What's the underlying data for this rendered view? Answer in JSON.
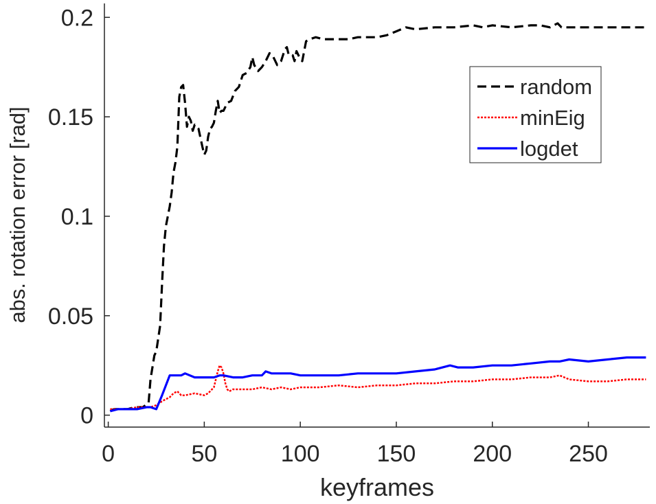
{
  "chart_data": {
    "type": "line",
    "title": "",
    "xlabel": "keyframes",
    "ylabel": "abs. rotation error [rad]",
    "xlim": [
      -2,
      282
    ],
    "ylim": [
      -0.006,
      0.207
    ],
    "xticks": [
      0,
      50,
      100,
      150,
      200,
      250
    ],
    "yticks": [
      0,
      0.05,
      0.1,
      0.15,
      0.2
    ],
    "xtick_labels": [
      "0",
      "50",
      "100",
      "150",
      "200",
      "250"
    ],
    "ytick_labels": [
      "0",
      "0.05",
      "0.1",
      "0.15",
      "0.2"
    ],
    "grid": false,
    "legend": {
      "position": "top-right"
    },
    "series": [
      {
        "name": "random",
        "color": "#000000",
        "style": "dashed",
        "x": [
          1,
          3,
          6,
          10,
          14,
          18,
          21,
          22,
          24,
          25,
          27,
          28,
          29,
          30,
          32,
          33,
          34,
          35,
          36,
          37,
          38,
          39,
          40,
          41,
          42,
          43,
          44,
          45,
          47,
          49,
          50,
          51,
          52,
          53,
          54,
          55,
          56,
          57,
          58,
          59,
          60,
          62,
          64,
          66,
          68,
          70,
          72,
          74,
          75,
          76,
          78,
          80,
          82,
          84,
          86,
          88,
          90,
          92,
          93,
          94,
          96,
          97,
          98,
          100,
          101,
          103,
          105,
          108,
          112,
          118,
          125,
          130,
          140,
          145,
          150,
          155,
          160,
          170,
          180,
          190,
          195,
          200,
          210,
          220,
          225,
          230,
          234,
          236,
          240,
          250,
          260,
          270,
          280
        ],
        "y": [
          0.002,
          0.003,
          0.003,
          0.003,
          0.004,
          0.004,
          0.006,
          0.018,
          0.03,
          0.032,
          0.045,
          0.066,
          0.085,
          0.095,
          0.105,
          0.112,
          0.122,
          0.127,
          0.135,
          0.16,
          0.165,
          0.166,
          0.157,
          0.145,
          0.15,
          0.148,
          0.143,
          0.146,
          0.144,
          0.135,
          0.131,
          0.133,
          0.14,
          0.144,
          0.145,
          0.147,
          0.153,
          0.158,
          0.152,
          0.153,
          0.153,
          0.157,
          0.158,
          0.163,
          0.165,
          0.171,
          0.172,
          0.175,
          0.18,
          0.176,
          0.173,
          0.175,
          0.178,
          0.182,
          0.18,
          0.176,
          0.178,
          0.184,
          0.185,
          0.181,
          0.181,
          0.178,
          0.183,
          0.179,
          0.178,
          0.188,
          0.189,
          0.19,
          0.189,
          0.189,
          0.189,
          0.19,
          0.19,
          0.191,
          0.193,
          0.195,
          0.194,
          0.195,
          0.195,
          0.196,
          0.195,
          0.196,
          0.195,
          0.196,
          0.196,
          0.195,
          0.197,
          0.195,
          0.195,
          0.195,
          0.195,
          0.195,
          0.195
        ]
      },
      {
        "name": "minEig",
        "color": "#ff0000",
        "style": "dotted",
        "x": [
          1,
          5,
          10,
          15,
          20,
          22,
          25,
          28,
          30,
          32,
          34,
          36,
          38,
          40,
          45,
          50,
          52,
          55,
          57,
          58,
          59,
          60,
          61,
          62,
          63,
          65,
          70,
          75,
          80,
          85,
          90,
          95,
          100,
          110,
          120,
          130,
          140,
          150,
          160,
          170,
          180,
          190,
          200,
          210,
          220,
          230,
          235,
          240,
          250,
          260,
          270,
          280
        ],
        "y": [
          0.003,
          0.003,
          0.003,
          0.004,
          0.004,
          0.004,
          0.005,
          0.007,
          0.008,
          0.009,
          0.011,
          0.012,
          0.01,
          0.01,
          0.011,
          0.01,
          0.011,
          0.014,
          0.022,
          0.025,
          0.024,
          0.021,
          0.016,
          0.013,
          0.012,
          0.013,
          0.013,
          0.013,
          0.014,
          0.013,
          0.014,
          0.013,
          0.014,
          0.014,
          0.015,
          0.014,
          0.015,
          0.015,
          0.016,
          0.016,
          0.017,
          0.017,
          0.018,
          0.018,
          0.019,
          0.019,
          0.02,
          0.018,
          0.017,
          0.017,
          0.018,
          0.018
        ]
      },
      {
        "name": "logdet",
        "color": "#0000ff",
        "style": "solid",
        "x": [
          1,
          5,
          10,
          15,
          20,
          22,
          25,
          28,
          30,
          32,
          35,
          38,
          40,
          45,
          50,
          55,
          58,
          60,
          65,
          70,
          75,
          80,
          82,
          85,
          90,
          95,
          100,
          110,
          120,
          130,
          140,
          150,
          160,
          170,
          178,
          182,
          190,
          200,
          210,
          220,
          230,
          235,
          240,
          250,
          260,
          270,
          275,
          280
        ],
        "y": [
          0.002,
          0.003,
          0.003,
          0.003,
          0.004,
          0.004,
          0.003,
          0.01,
          0.015,
          0.02,
          0.02,
          0.02,
          0.021,
          0.019,
          0.019,
          0.019,
          0.02,
          0.02,
          0.019,
          0.019,
          0.02,
          0.02,
          0.022,
          0.021,
          0.021,
          0.021,
          0.02,
          0.02,
          0.02,
          0.021,
          0.021,
          0.021,
          0.022,
          0.023,
          0.025,
          0.024,
          0.024,
          0.025,
          0.025,
          0.026,
          0.027,
          0.027,
          0.028,
          0.027,
          0.028,
          0.029,
          0.029,
          0.029
        ]
      }
    ]
  }
}
